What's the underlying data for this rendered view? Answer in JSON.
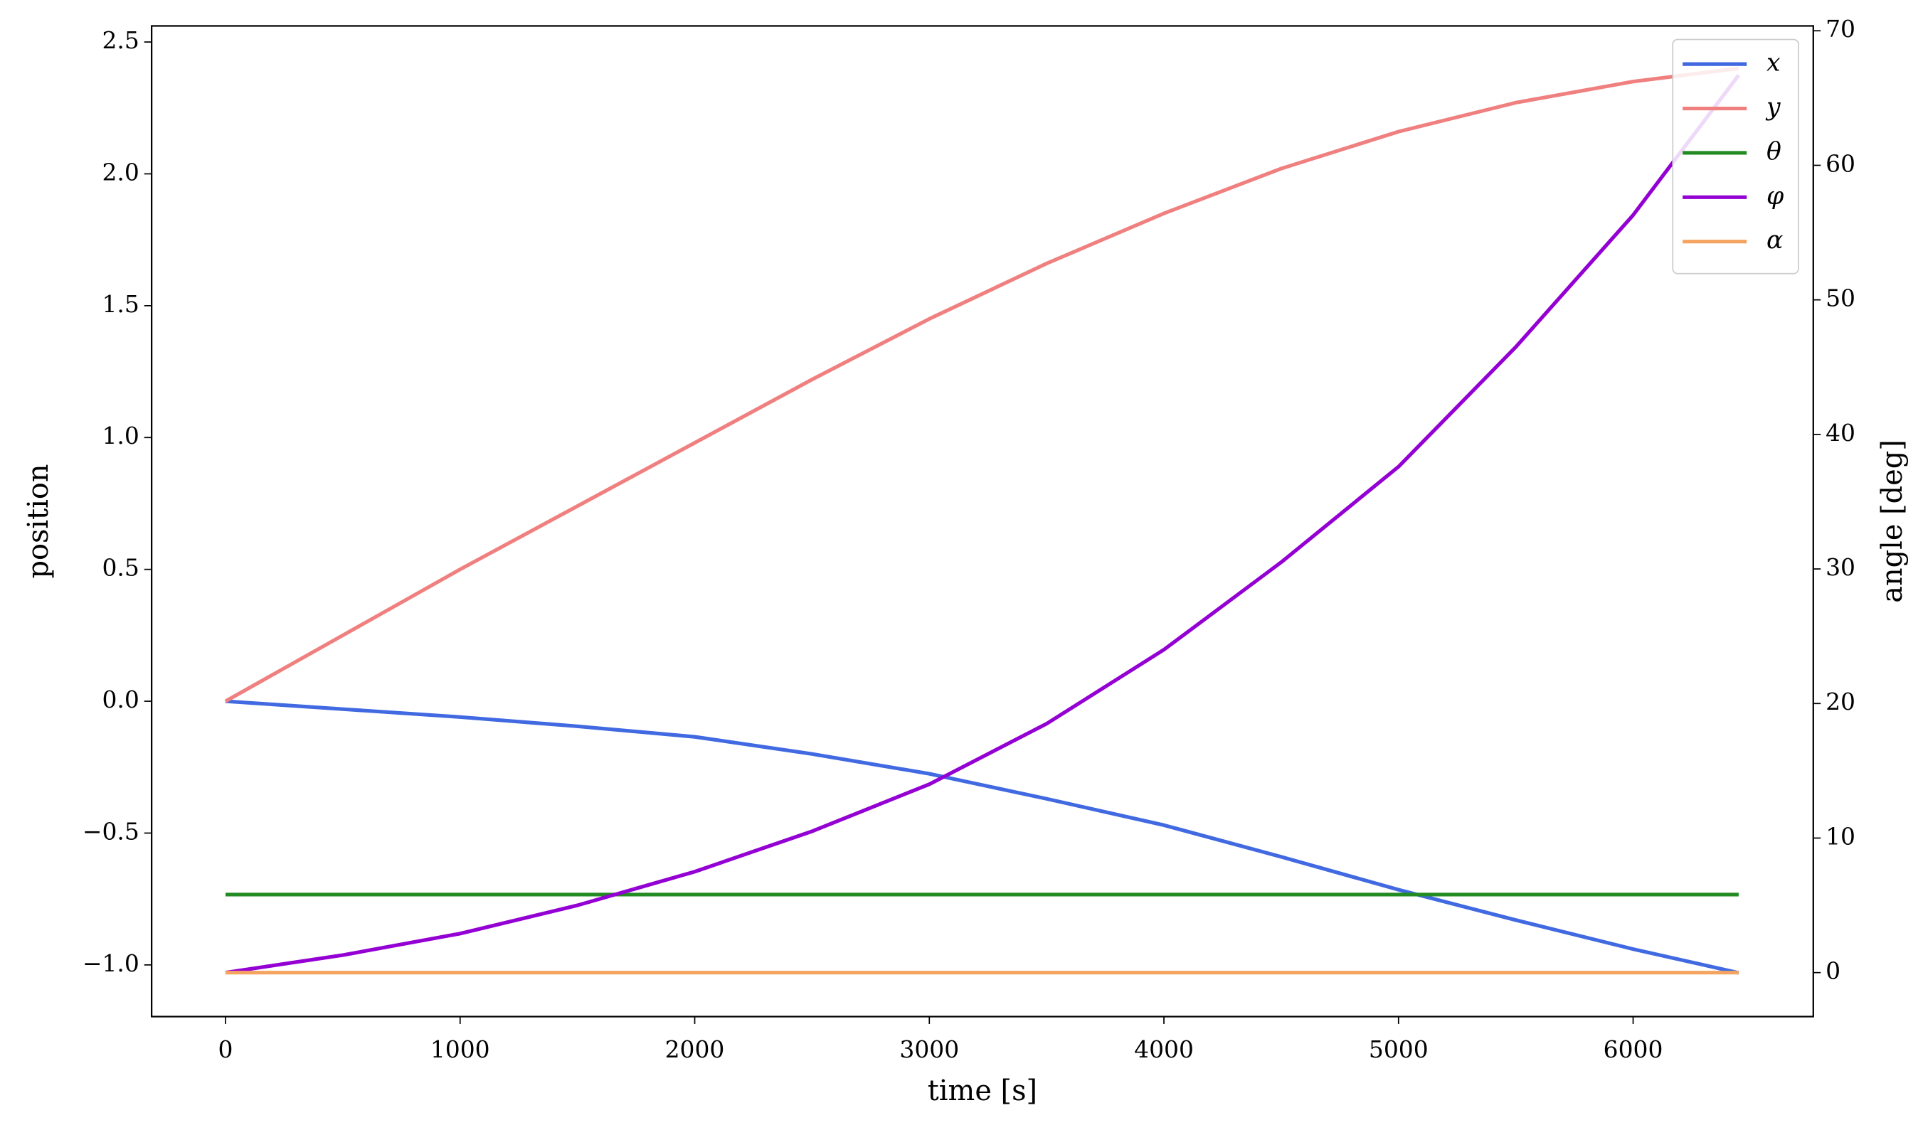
{
  "chart_data": {
    "type": "line",
    "x_label": "time [s]",
    "y_label": "position",
    "y2_label": "angle [deg]",
    "x": [
      0,
      500,
      1000,
      1500,
      2000,
      2500,
      3000,
      3500,
      4000,
      4500,
      5000,
      5500,
      6000,
      6450
    ],
    "series": [
      {
        "name": "x",
        "color": "#4169e1",
        "values": [
          0,
          -0.03,
          -0.06,
          -0.095,
          -0.135,
          -0.2,
          -0.275,
          -0.37,
          -0.47,
          -0.59,
          -0.715,
          -0.83,
          -0.94,
          -1.03
        ]
      },
      {
        "name": "y",
        "color": "#f08080",
        "values": [
          0,
          0.25,
          0.5,
          0.74,
          0.98,
          1.22,
          1.45,
          1.66,
          1.85,
          2.02,
          2.16,
          2.27,
          2.35,
          2.4
        ]
      },
      {
        "name": "θ",
        "color": "#228b22",
        "axis": "y2",
        "values": [
          5.8,
          5.8,
          5.8,
          5.8,
          5.8,
          5.8,
          5.8,
          5.8,
          5.8,
          5.8,
          5.8,
          5.8,
          5.8,
          5.8
        ]
      },
      {
        "name": "φ",
        "color": "#9400d3",
        "axis": "y2",
        "values": [
          0,
          1.3,
          2.9,
          5,
          7.5,
          10.5,
          14,
          18.5,
          24,
          30.5,
          37.6,
          46.5,
          56.3,
          66.7
        ]
      },
      {
        "name": "α",
        "color": "#f4a460",
        "axis": "y2",
        "values": [
          0,
          0,
          0,
          0,
          0,
          0,
          0,
          0,
          0,
          0,
          0,
          0,
          0,
          0
        ]
      }
    ],
    "xlim": [
      -315,
      6768
    ],
    "xticks": [
      0,
      1000,
      2000,
      3000,
      4000,
      5000,
      6000
    ],
    "ylim": [
      -1.196,
      2.561
    ],
    "yticks": [
      {
        "value": -1.0,
        "label": "−1.0"
      },
      {
        "value": -0.5,
        "label": "−0.5"
      },
      {
        "value": 0,
        "label": "0.0"
      },
      0.5,
      {
        "value": 1.0,
        "label": "1.0"
      },
      1.5,
      {
        "value": 2.0,
        "label": "2.0"
      },
      2.5
    ],
    "y2lim": [
      -3.27,
      70.36
    ],
    "y2ticks": [
      0,
      10,
      20,
      30,
      40,
      50,
      60,
      70
    ],
    "legend": "upper right",
    "grid": false
  }
}
